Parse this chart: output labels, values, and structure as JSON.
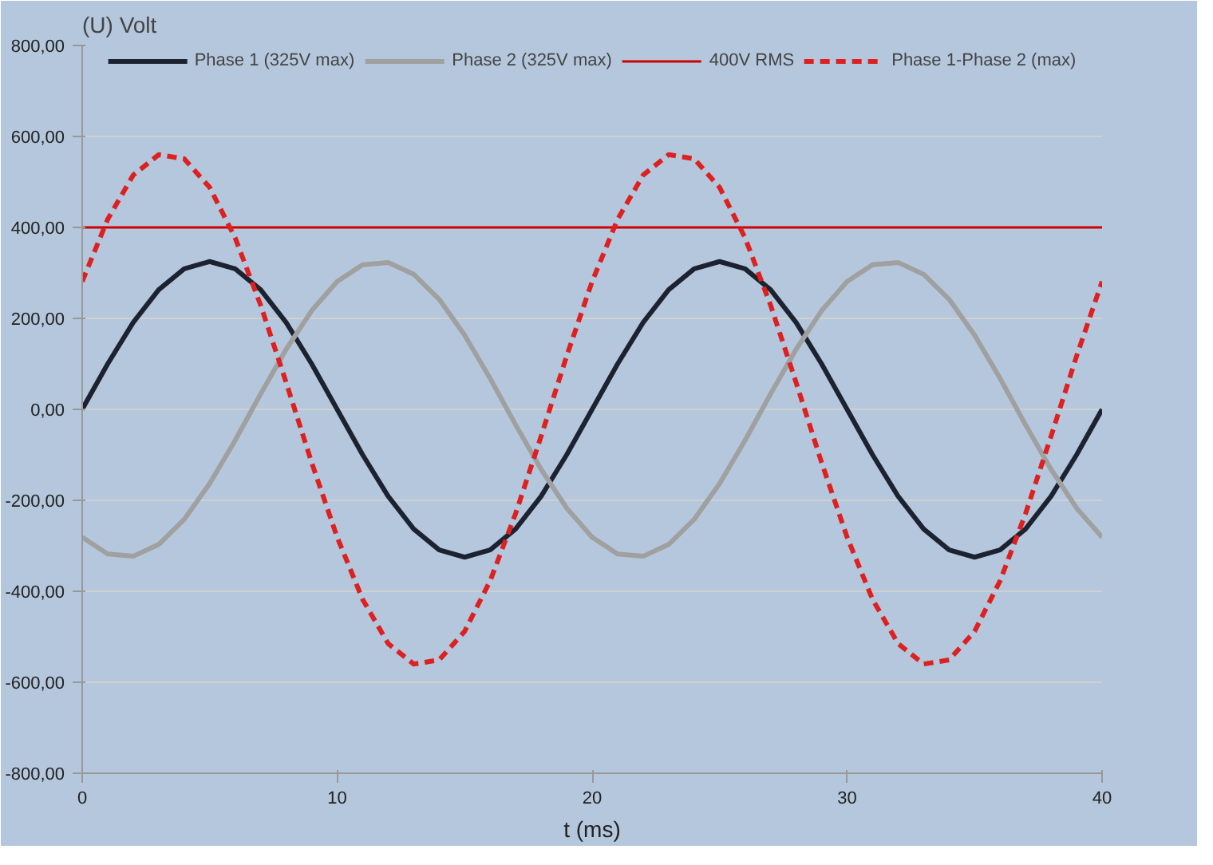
{
  "chart_data": {
    "type": "line",
    "xlabel": "t (ms)",
    "ylabel": "(U) Volt",
    "legend": "top",
    "grid": "y",
    "xlim": [
      0,
      40
    ],
    "ylim": [
      -800,
      800
    ],
    "xticks": [
      0,
      10,
      20,
      30,
      40
    ],
    "yticks": [
      {
        "value": -800,
        "label": "-800,00"
      },
      {
        "value": -600,
        "label": "-600,00"
      },
      {
        "value": -400,
        "label": "-400,00"
      },
      {
        "value": -200,
        "label": "-200,00"
      },
      {
        "value": 0,
        "label": "0,00"
      },
      {
        "value": 200,
        "label": "200,00"
      },
      {
        "value": 400,
        "label": "400,00"
      },
      {
        "value": 600,
        "label": "600,00"
      },
      {
        "value": 800,
        "label": "800,00"
      }
    ],
    "x": [
      0,
      1,
      2,
      3,
      4,
      5,
      6,
      7,
      8,
      9,
      10,
      11,
      12,
      13,
      14,
      15,
      16,
      17,
      18,
      19,
      20,
      21,
      22,
      23,
      24,
      25,
      26,
      27,
      28,
      29,
      30,
      31,
      32,
      33,
      34,
      35,
      36,
      37,
      38,
      39,
      40
    ],
    "series": [
      {
        "name": "Phase 1 (325V max)",
        "color": "#1c2230",
        "line_style": "solid",
        "values": [
          0,
          100,
          191,
          263,
          309,
          325,
          309,
          263,
          191,
          100,
          0,
          -100,
          -191,
          -263,
          -309,
          -325,
          -309,
          -263,
          -191,
          -100,
          0,
          100,
          191,
          263,
          309,
          325,
          309,
          263,
          191,
          100,
          0,
          -100,
          -191,
          -263,
          -309,
          -325,
          -309,
          -263,
          -191,
          -100,
          0
        ]
      },
      {
        "name": "Phase 2 (325V max)",
        "color": "#a0a0a0",
        "line_style": "solid",
        "values": [
          -281,
          -318,
          -323,
          -297,
          -242,
          -163,
          -68,
          34,
          132,
          217,
          281,
          318,
          323,
          297,
          242,
          163,
          68,
          -34,
          -132,
          -217,
          -281,
          -318,
          -323,
          -297,
          -242,
          -163,
          -68,
          34,
          132,
          217,
          281,
          318,
          323,
          297,
          242,
          163,
          68,
          -34,
          -132,
          -217,
          -281
        ]
      },
      {
        "name": "400V RMS",
        "color": "#cc0000",
        "line_style": "solid",
        "x": [
          0,
          40
        ],
        "values": [
          400,
          400
        ]
      },
      {
        "name": "Phase 1-Phase 2 (max)",
        "color": "#dd2020",
        "line_style": "dashed",
        "values": [
          281,
          418,
          515,
          560,
          551,
          488,
          377,
          229,
          59,
          -117,
          -281,
          -418,
          -515,
          -560,
          -551,
          -488,
          -377,
          -229,
          -59,
          117,
          281,
          418,
          515,
          560,
          551,
          488,
          377,
          229,
          59,
          -117,
          -281,
          -418,
          -515,
          -560,
          -551,
          -488,
          -377,
          -229,
          -59,
          117,
          281
        ]
      }
    ]
  }
}
